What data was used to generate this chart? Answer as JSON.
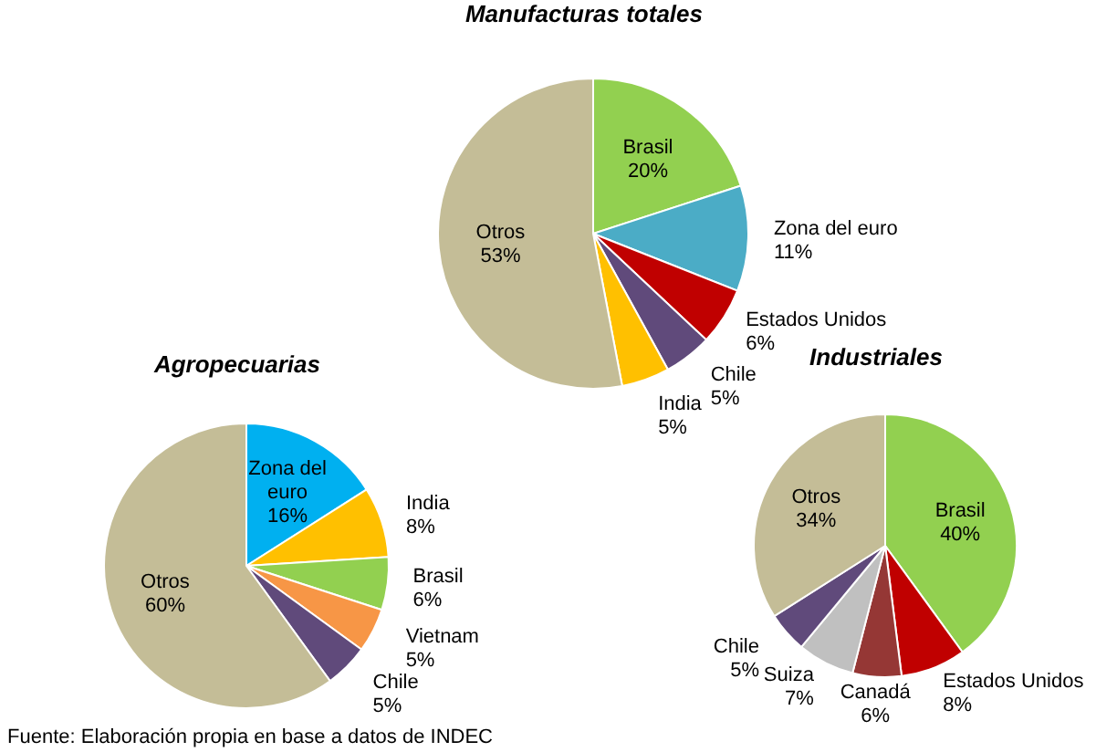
{
  "chart_data": [
    {
      "type": "pie",
      "title": "Manufacturas totales",
      "categories": [
        "Brasil",
        "Zona del euro",
        "Estados Unidos",
        "Chile",
        "India",
        "Otros"
      ],
      "values": [
        20,
        11,
        6,
        5,
        5,
        53
      ],
      "colors": [
        "#92d050",
        "#4bacc6",
        "#c00000",
        "#604a7b",
        "#ffc000",
        "#c4bd97"
      ],
      "value_labels": [
        "20%",
        "11%",
        "6%",
        "5%",
        "5%",
        "53%"
      ]
    },
    {
      "type": "pie",
      "title": "Agropecuarias",
      "categories": [
        "Zona del euro",
        "India",
        "Brasil",
        "Vietnam",
        "Chile",
        "Otros"
      ],
      "values": [
        16,
        8,
        6,
        5,
        5,
        60
      ],
      "colors": [
        "#00b0f0",
        "#ffc000",
        "#92d050",
        "#f79646",
        "#604a7b",
        "#c4bd97"
      ],
      "value_labels": [
        "16%",
        "8%",
        "6%",
        "5%",
        "5%",
        "60%"
      ],
      "annotations": [
        "Fuente: Elaboración propia en base a datos de INDEC"
      ]
    },
    {
      "type": "pie",
      "title": "Industriales",
      "categories": [
        "Brasil",
        "Estados Unidos",
        "Canadá",
        "Suiza",
        "Chile",
        "Otros"
      ],
      "values": [
        40,
        8,
        6,
        7,
        5,
        34
      ],
      "colors": [
        "#92d050",
        "#c00000",
        "#953735",
        "#c0c0c0",
        "#604a7b",
        "#c4bd97"
      ],
      "value_labels": [
        "40%",
        "8%",
        "6%",
        "7%",
        "5%",
        "34%"
      ]
    }
  ]
}
